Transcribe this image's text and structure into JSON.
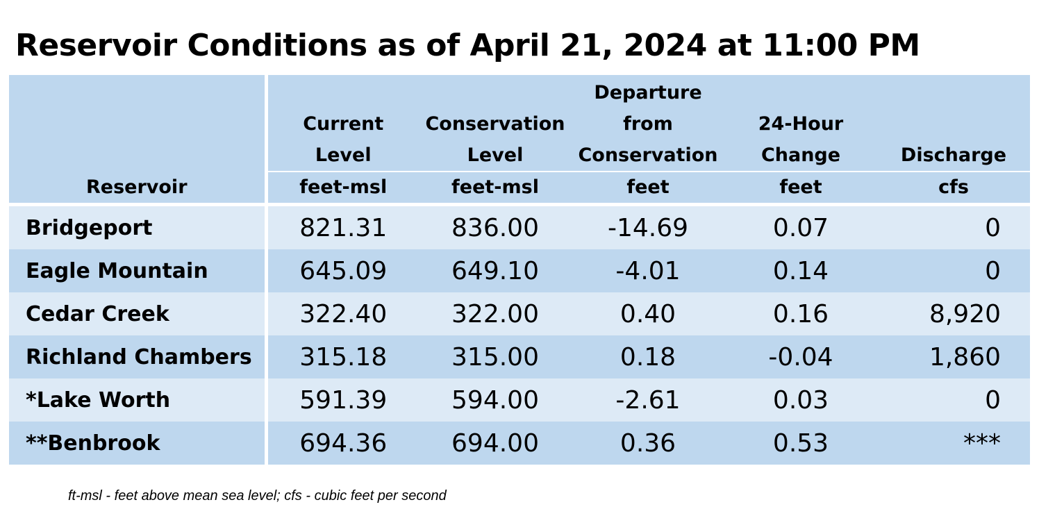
{
  "title": "Reservoir Conditions as of April 21, 2024 at 11:00 PM",
  "columns": [
    {
      "label_lines": [
        "Reservoir"
      ],
      "unit": ""
    },
    {
      "label_lines": [
        "Current",
        "Level"
      ],
      "unit": "feet-msl"
    },
    {
      "label_lines": [
        "Conservation",
        "Level"
      ],
      "unit": "feet-msl"
    },
    {
      "label_lines": [
        "Departure",
        "from",
        "Conservation"
      ],
      "unit": "feet"
    },
    {
      "label_lines": [
        "24-Hour",
        "Change"
      ],
      "unit": "feet"
    },
    {
      "label_lines": [
        "Discharge"
      ],
      "unit": "cfs"
    }
  ],
  "rows": [
    {
      "reservoir": "Bridgeport",
      "current_level": "821.31",
      "conservation_level": "836.00",
      "departure": "-14.69",
      "change_24h": "0.07",
      "discharge": "0"
    },
    {
      "reservoir": "Eagle Mountain",
      "current_level": "645.09",
      "conservation_level": "649.10",
      "departure": "-4.01",
      "change_24h": "0.14",
      "discharge": "0"
    },
    {
      "reservoir": "Cedar Creek",
      "current_level": "322.40",
      "conservation_level": "322.00",
      "departure": "0.40",
      "change_24h": "0.16",
      "discharge": "8,920"
    },
    {
      "reservoir": "Richland Chambers",
      "current_level": "315.18",
      "conservation_level": "315.00",
      "departure": "0.18",
      "change_24h": "-0.04",
      "discharge": "1,860"
    },
    {
      "reservoir": "*Lake Worth",
      "current_level": "591.39",
      "conservation_level": "594.00",
      "departure": "-2.61",
      "change_24h": "0.03",
      "discharge": "0"
    },
    {
      "reservoir": "**Benbrook",
      "current_level": "694.36",
      "conservation_level": "694.00",
      "departure": "0.36",
      "change_24h": "0.53",
      "discharge": "***"
    }
  ],
  "footnote": "ft-msl - feet above mean sea level; cfs - cubic feet per second",
  "colors": {
    "header_bg": "#bed7ee",
    "row_light": "#ddeaf6",
    "row_dark": "#bed7ee"
  }
}
